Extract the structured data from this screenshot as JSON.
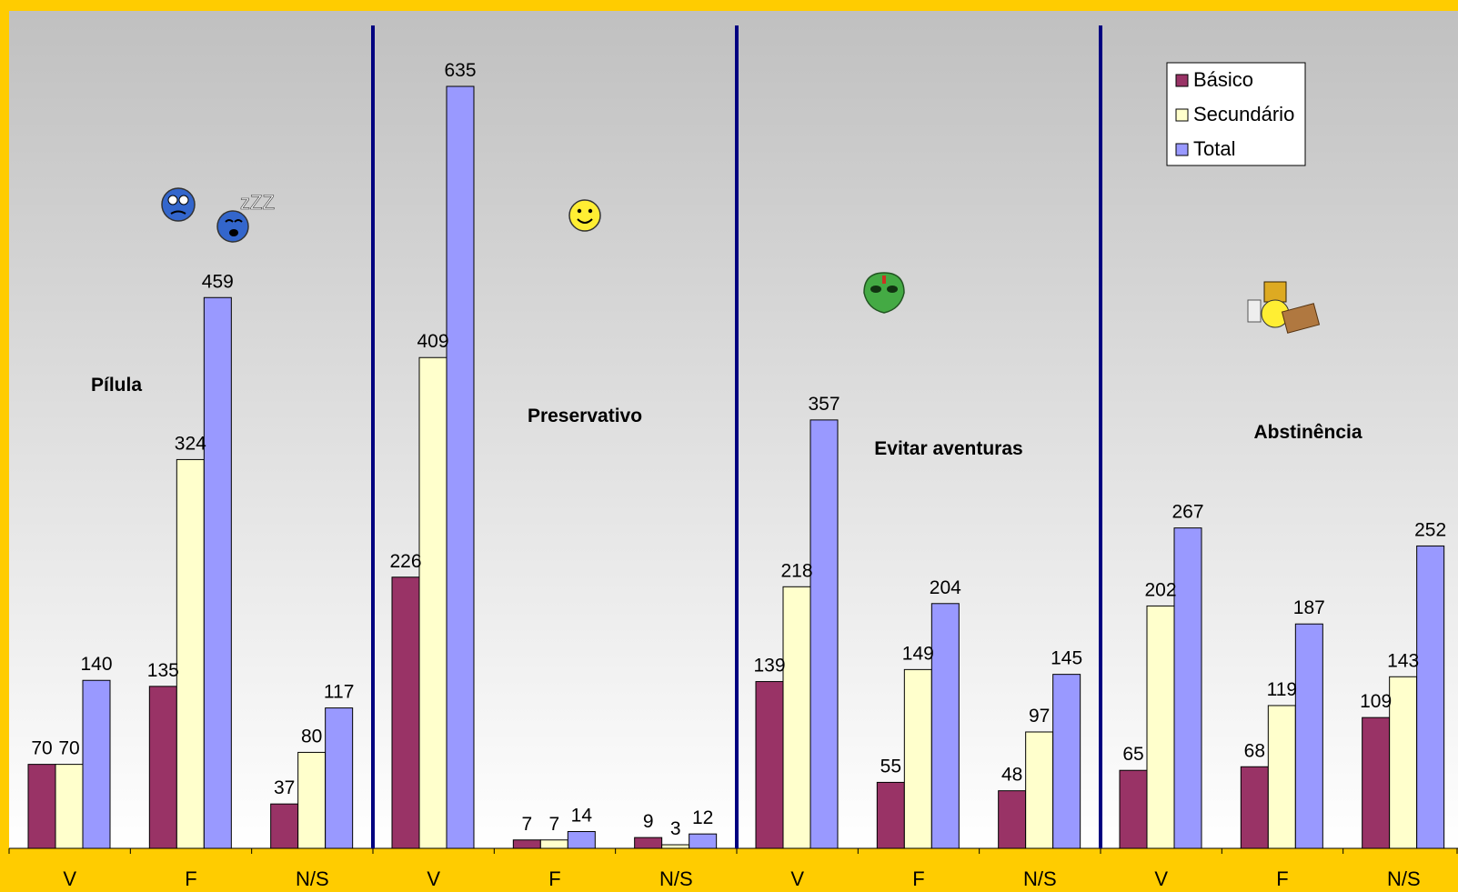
{
  "chart_data": {
    "type": "bar",
    "groups": [
      {
        "label": "Pílula",
        "icon": "sleepy-faces-icon",
        "categories": [
          "V",
          "F",
          "N/S"
        ],
        "basico": [
          70,
          135,
          37
        ],
        "secundario": [
          70,
          324,
          80
        ],
        "total": [
          140,
          459,
          117
        ]
      },
      {
        "label": "Preservativo",
        "icon": "smiley-icon",
        "categories": [
          "V",
          "F",
          "N/S"
        ],
        "basico": [
          226,
          7,
          9
        ],
        "secundario": [
          409,
          7,
          3
        ],
        "total": [
          635,
          14,
          12
        ]
      },
      {
        "label": "Evitar aventuras",
        "icon": "alien-icon",
        "categories": [
          "V",
          "F",
          "N/S"
        ],
        "basico": [
          139,
          55,
          48
        ],
        "secundario": [
          218,
          149,
          97
        ],
        "total": [
          357,
          204,
          145
        ]
      },
      {
        "label": "Abstinência",
        "icon": "pope-smiley-icon",
        "categories": [
          "V",
          "F",
          "N/S"
        ],
        "basico": [
          65,
          68,
          109
        ],
        "secundario": [
          202,
          119,
          143
        ],
        "total": [
          267,
          187,
          252
        ]
      }
    ],
    "series": [
      {
        "name": "Básico",
        "color": "#993366"
      },
      {
        "name": "Secundário",
        "color": "#FFFFCC"
      },
      {
        "name": "Total",
        "color": "#9999FF"
      }
    ],
    "ylim": [
      0,
      700
    ],
    "legend_position": "top-right",
    "grid": false,
    "colors": {
      "frame": "#FFCC00",
      "divider": "#000080",
      "plot_top": "#C0C0C0",
      "plot_bottom": "#FFFFFF"
    }
  }
}
